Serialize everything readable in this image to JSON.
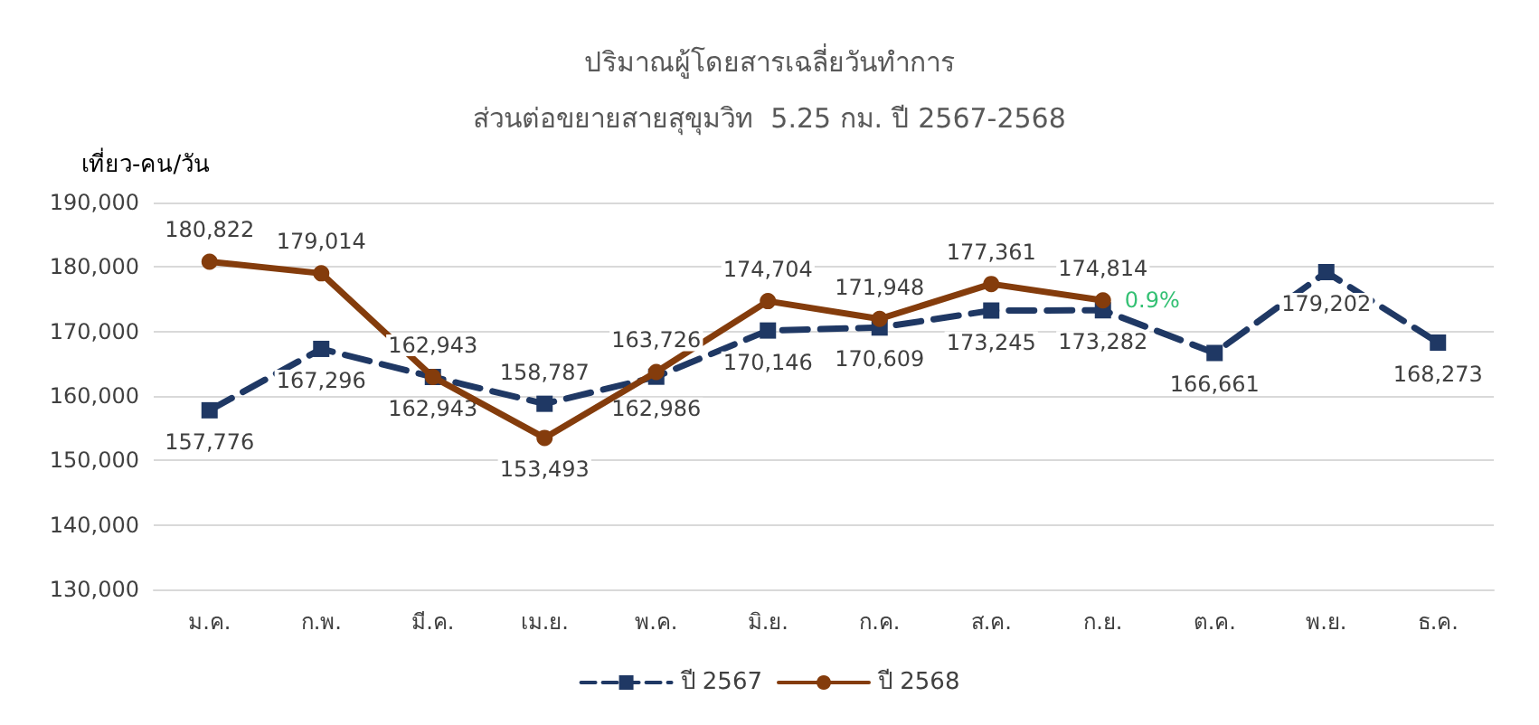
{
  "chart_data": {
    "type": "line",
    "title": "ปริมาณผู้โดยสารเฉลี่ยวันทำการ",
    "subtitle": "ส่วนต่อขยายสายสุขุมวิท  5.25 กม. ปี 2567-2568",
    "ylabel": "เที่ยว-คน/วัน",
    "categories": [
      "ม.ค.",
      "ก.พ.",
      "มี.ค.",
      "เม.ย.",
      "พ.ค.",
      "มิ.ย.",
      "ก.ค.",
      "ส.ค.",
      "ก.ย.",
      "ต.ค.",
      "พ.ย.",
      "ธ.ค."
    ],
    "series": [
      {
        "name": "ปี 2567",
        "color": "#1f3864",
        "marker": "square",
        "line_style": "dashed",
        "values": [
          157776,
          167296,
          162943,
          158787,
          162986,
          170146,
          170609,
          173245,
          173282,
          166661,
          179202,
          168273
        ],
        "value_labels": [
          "157,776",
          "167,296",
          "162,943",
          "158,787",
          "162,986",
          "170,146",
          "170,609",
          "173,245",
          "173,282",
          "166,661",
          "179,202",
          "168,273"
        ]
      },
      {
        "name": "ปี 2568",
        "color": "#843c0c",
        "marker": "circle",
        "line_style": "solid",
        "values": [
          180822,
          179014,
          162943,
          153493,
          163726,
          174704,
          171948,
          177361,
          174814,
          null,
          null,
          null
        ],
        "value_labels": [
          "180,822",
          "179,014",
          "162,943",
          "153,493",
          "163,726",
          "174,704",
          "171,948",
          "177,361",
          "174,814",
          null,
          null,
          null
        ]
      }
    ],
    "ylim": [
      130000,
      190000
    ],
    "yticks": [
      {
        "value": 130000,
        "label": "130,000"
      },
      {
        "value": 140000,
        "label": "140,000"
      },
      {
        "value": 150000,
        "label": "150,000"
      },
      {
        "value": 160000,
        "label": "160,000"
      },
      {
        "value": 170000,
        "label": "170,000"
      },
      {
        "value": 180000,
        "label": "180,000"
      },
      {
        "value": 190000,
        "label": "190,000"
      }
    ],
    "grid": "y",
    "legend": "bottom",
    "annotations": [
      {
        "text": "0.9%",
        "x": "ก.ย.",
        "y": 174814
      }
    ]
  }
}
